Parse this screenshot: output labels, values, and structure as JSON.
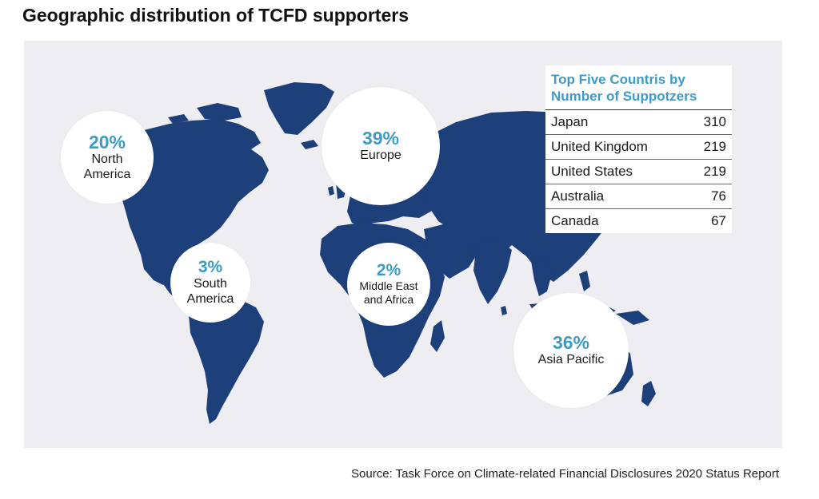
{
  "title": "Geographic distribution of TCFD supporters",
  "colors": {
    "land": "#1d3f7a",
    "ocean": "#eeeef2",
    "accent": "#3d9bc7"
  },
  "regions": [
    {
      "pct": "20%",
      "label_line1": "North",
      "label_line2": "America",
      "value": 20
    },
    {
      "pct": "39%",
      "label_line1": "Europe",
      "label_line2": "",
      "value": 39
    },
    {
      "pct": "3%",
      "label_line1": "South",
      "label_line2": "America",
      "value": 3
    },
    {
      "pct": "2%",
      "label_line1": "Middle East",
      "label_line2": "and Africa",
      "value": 2
    },
    {
      "pct": "36%",
      "label_line1": "Asia Pacific",
      "label_line2": "",
      "value": 36
    }
  ],
  "table": {
    "title_line1": "Top Five Countris by",
    "title_line2": "Number of Suppotzers",
    "rows": [
      {
        "country": "Japan",
        "count": "310"
      },
      {
        "country": "United Kingdom",
        "count": "219"
      },
      {
        "country": "United States",
        "count": "219"
      },
      {
        "country": "Australia",
        "count": "76"
      },
      {
        "country": "Canada",
        "count": "67"
      }
    ]
  },
  "source": "Source: Task Force on Climate-related Financial Disclosures 2020 Status Report"
}
